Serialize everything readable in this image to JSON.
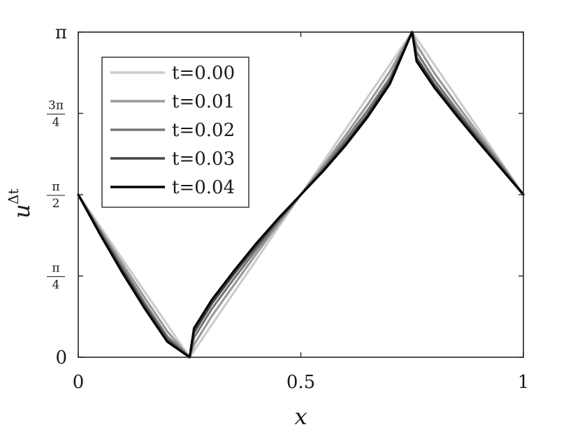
{
  "chart_data": {
    "type": "line",
    "title": "",
    "xlabel": "x",
    "ylabel": {
      "base": "u",
      "superscript": "Δt"
    },
    "xlim": [
      0,
      1
    ],
    "ylim": [
      0,
      3.14159265
    ],
    "xticks": [
      {
        "value": 0,
        "label": "0"
      },
      {
        "value": 0.5,
        "label": "0.5"
      },
      {
        "value": 1,
        "label": "1"
      }
    ],
    "yticks": [
      {
        "value": 0,
        "label": "0"
      },
      {
        "value": 0.78539816,
        "num": "π",
        "den": "4"
      },
      {
        "value": 1.57079633,
        "num": "π",
        "den": "2"
      },
      {
        "value": 2.35619449,
        "num": "3π",
        "den": "4"
      },
      {
        "value": 3.14159265,
        "label": "π"
      }
    ],
    "grid": false,
    "legend_position": "top-left",
    "series": [
      {
        "name": "t=0.00",
        "color": "#cccccc",
        "x": [
          0,
          0.05,
          0.1,
          0.15,
          0.2,
          0.25,
          0.3,
          0.35,
          0.4,
          0.45,
          0.5,
          0.55,
          0.6,
          0.65,
          0.7,
          0.75,
          0.8,
          0.85,
          0.9,
          0.95,
          1
        ],
        "y": [
          1.571,
          1.257,
          0.942,
          0.628,
          0.314,
          0.0,
          0.314,
          0.628,
          0.942,
          1.257,
          1.571,
          1.885,
          2.199,
          2.513,
          2.827,
          3.142,
          2.827,
          2.513,
          2.199,
          1.885,
          1.571
        ]
      },
      {
        "name": "t=0.01",
        "color": "#999999",
        "x": [
          0,
          0.05,
          0.1,
          0.15,
          0.2,
          0.25,
          0.26,
          0.3,
          0.35,
          0.4,
          0.45,
          0.5,
          0.55,
          0.6,
          0.65,
          0.7,
          0.75,
          0.76,
          0.8,
          0.85,
          0.9,
          0.95,
          1
        ],
        "y": [
          1.571,
          1.232,
          0.898,
          0.569,
          0.25,
          0.0,
          0.12,
          0.398,
          0.7,
          1.0,
          1.29,
          1.571,
          1.85,
          2.14,
          2.44,
          2.76,
          3.142,
          3.02,
          2.745,
          2.445,
          2.155,
          1.87,
          1.571
        ]
      },
      {
        "name": "t=0.02",
        "color": "#777777",
        "x": [
          0,
          0.05,
          0.1,
          0.15,
          0.2,
          0.25,
          0.26,
          0.3,
          0.35,
          0.4,
          0.45,
          0.5,
          0.55,
          0.6,
          0.65,
          0.7,
          0.75,
          0.76,
          0.8,
          0.85,
          0.9,
          0.95,
          1
        ],
        "y": [
          1.571,
          1.21,
          0.86,
          0.52,
          0.2,
          0.0,
          0.19,
          0.468,
          0.76,
          1.04,
          1.315,
          1.571,
          1.825,
          2.1,
          2.385,
          2.7,
          3.142,
          2.95,
          2.68,
          2.395,
          2.12,
          1.85,
          1.571
        ]
      },
      {
        "name": "t=0.03",
        "color": "#444444",
        "x": [
          0,
          0.05,
          0.1,
          0.15,
          0.2,
          0.25,
          0.26,
          0.3,
          0.35,
          0.4,
          0.45,
          0.5,
          0.55,
          0.6,
          0.65,
          0.7,
          0.75,
          0.76,
          0.8,
          0.85,
          0.9,
          0.95,
          1
        ],
        "y": [
          1.571,
          1.195,
          0.835,
          0.49,
          0.17,
          0.0,
          0.24,
          0.52,
          0.805,
          1.075,
          1.332,
          1.571,
          1.808,
          2.065,
          2.345,
          2.665,
          3.142,
          2.895,
          2.635,
          2.36,
          2.095,
          1.835,
          1.571
        ]
      },
      {
        "name": "t=0.04",
        "color": "#000000",
        "x": [
          0,
          0.05,
          0.1,
          0.15,
          0.2,
          0.25,
          0.26,
          0.3,
          0.35,
          0.4,
          0.45,
          0.5,
          0.55,
          0.6,
          0.65,
          0.7,
          0.75,
          0.76,
          0.8,
          0.85,
          0.9,
          0.95,
          1
        ],
        "y": [
          1.571,
          1.18,
          0.81,
          0.465,
          0.15,
          0.0,
          0.28,
          0.555,
          0.835,
          1.1,
          1.345,
          1.571,
          1.797,
          2.045,
          2.32,
          2.64,
          3.142,
          2.86,
          2.605,
          2.335,
          2.075,
          1.823,
          1.571
        ]
      }
    ]
  }
}
